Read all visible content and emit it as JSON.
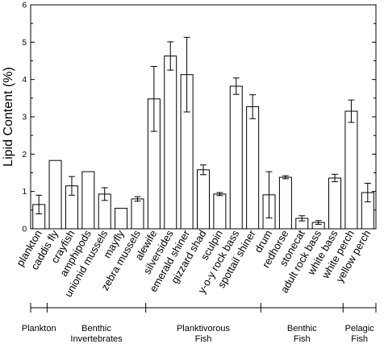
{
  "chart_data": {
    "type": "bar",
    "title": "",
    "xlabel": "",
    "ylabel": "Lipid Content (%)",
    "ylim": [
      0,
      6
    ],
    "yticks": [
      0,
      1,
      2,
      3,
      4,
      5,
      6
    ],
    "grid": false,
    "categories": [
      "plankton",
      "caddis fly",
      "crayfish",
      "amphipods",
      "unionid mussels",
      "mayfly",
      "zebra mussels",
      "alewife",
      "silversides",
      "emerald shiner",
      "gizzard shad",
      "sculpin",
      "y-o-y rock bass",
      "spottail shiner",
      "drum",
      "redhorse",
      "stonecat",
      "adult rock bass",
      "white bass",
      "white perch",
      "yellow perch"
    ],
    "values": [
      0.65,
      1.83,
      1.15,
      1.53,
      0.93,
      0.55,
      0.8,
      3.48,
      4.63,
      4.13,
      1.58,
      0.93,
      3.82,
      3.27,
      0.91,
      1.38,
      0.28,
      0.17,
      1.36,
      3.15,
      0.97
    ],
    "error": [
      0.25,
      null,
      0.25,
      null,
      0.17,
      null,
      0.06,
      0.87,
      0.38,
      1.0,
      0.13,
      0.04,
      0.22,
      0.32,
      0.62,
      0.04,
      0.07,
      0.05,
      0.1,
      0.3,
      0.25
    ],
    "groups": [
      {
        "name": "Plankton",
        "span": [
          0,
          0
        ]
      },
      {
        "name": "Benthic\nInvertebrates",
        "span": [
          1,
          6
        ]
      },
      {
        "name": "Planktivorous\nFish",
        "span": [
          7,
          13
        ]
      },
      {
        "name": "Benthic\nFish",
        "span": [
          14,
          18
        ]
      },
      {
        "name": "Pelagic\nFish",
        "span": [
          19,
          20
        ]
      }
    ]
  }
}
